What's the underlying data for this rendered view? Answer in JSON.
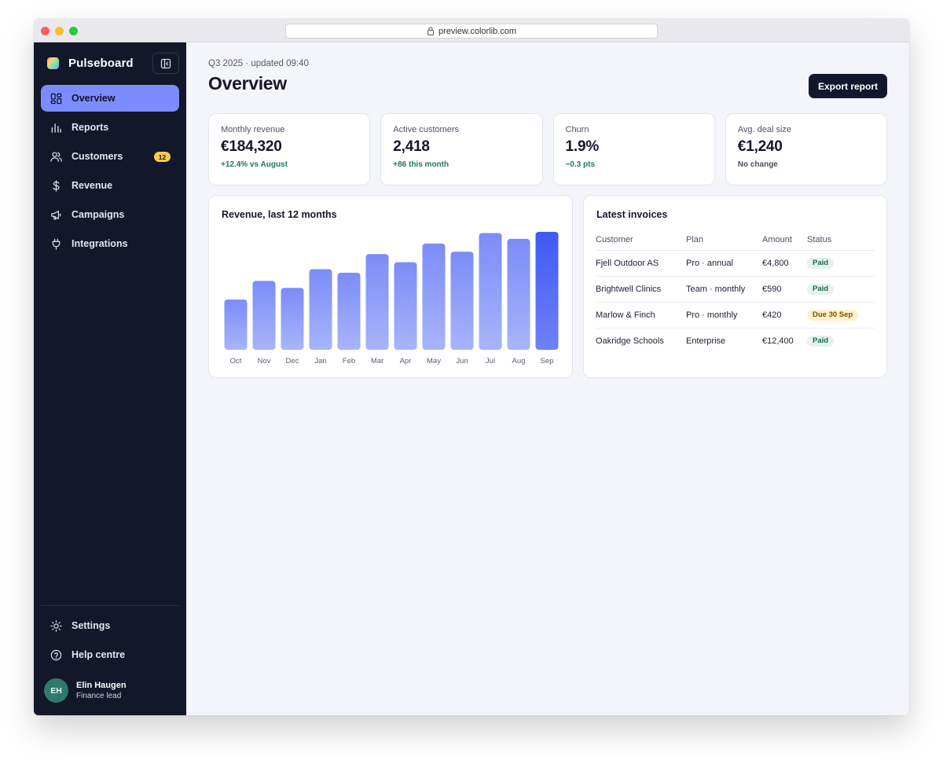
{
  "browser": {
    "url": "preview.colorlib.com"
  },
  "sidebar": {
    "brand": "Pulseboard",
    "items": [
      {
        "label": "Overview",
        "icon": "layout-grid-icon",
        "active": true
      },
      {
        "label": "Reports",
        "icon": "bar-chart-icon"
      },
      {
        "label": "Customers",
        "icon": "users-icon",
        "badge": "12"
      },
      {
        "label": "Revenue",
        "icon": "dollar-icon"
      },
      {
        "label": "Campaigns",
        "icon": "megaphone-icon"
      },
      {
        "label": "Integrations",
        "icon": "plug-icon"
      }
    ],
    "bottom_items": [
      {
        "label": "Settings",
        "icon": "sun-icon"
      },
      {
        "label": "Help centre",
        "icon": "help-circle-icon"
      }
    ],
    "user": {
      "initials": "EH",
      "name": "Elin Haugen",
      "role": "Finance lead"
    }
  },
  "header": {
    "subtitle": "Q3 2025 · updated 09:40",
    "title": "Overview",
    "export_label": "Export report"
  },
  "kpis": [
    {
      "label": "Monthly revenue",
      "value": "€184,320",
      "delta": "+12.4% vs August",
      "tone": "up"
    },
    {
      "label": "Active customers",
      "value": "2,418",
      "delta": "+86 this month",
      "tone": "up"
    },
    {
      "label": "Churn",
      "value": "1.9%",
      "delta": "−0.3 pts",
      "tone": "up"
    },
    {
      "label": "Avg. deal size",
      "value": "€1,240",
      "delta": "No change",
      "tone": "neutral"
    }
  ],
  "revenue_chart": {
    "title": "Revenue, last 12 months"
  },
  "chart_data": {
    "type": "bar",
    "title": "Revenue, last 12 months",
    "categories": [
      "Oct",
      "Nov",
      "Dec",
      "Jan",
      "Feb",
      "Mar",
      "Apr",
      "May",
      "Jun",
      "Jul",
      "Aug",
      "Sep"
    ],
    "values": [
      43,
      59,
      53,
      69,
      66,
      82,
      75,
      91,
      84,
      100,
      95,
      101
    ],
    "ylim": [
      0,
      101
    ],
    "highlight_last": true,
    "colors": {
      "bar_top": "#7b8cf7",
      "bar_bottom": "#a8b4fb",
      "highlight_top": "#3f59f4",
      "highlight_bottom": "#6f82fb"
    },
    "grid": false,
    "legend": "none"
  },
  "invoices": {
    "title": "Latest invoices",
    "columns": [
      "Customer",
      "Plan",
      "Amount",
      "Status"
    ],
    "rows": [
      {
        "customer": "Fjell Outdoor AS",
        "plan": "Pro · annual",
        "amount": "€4,800",
        "status": "Paid",
        "tone": "paid"
      },
      {
        "customer": "Brightwell Clinics",
        "plan": "Team · monthly",
        "amount": "€590",
        "status": "Paid",
        "tone": "paid"
      },
      {
        "customer": "Marlow & Finch",
        "plan": "Pro · monthly",
        "amount": "€420",
        "status": "Due 30 Sep",
        "tone": "due"
      },
      {
        "customer": "Oakridge Schools",
        "plan": "Enterprise",
        "amount": "€12,400",
        "status": "Paid",
        "tone": "paid"
      }
    ]
  }
}
